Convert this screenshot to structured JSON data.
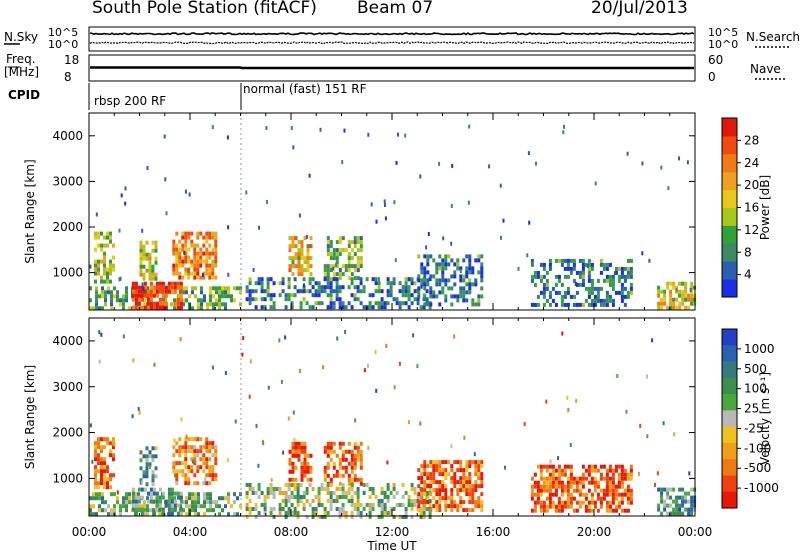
{
  "header": {
    "station": "South Pole Station (fitACF)",
    "beam": "Beam 07",
    "date": "20/Jul/2013"
  },
  "meta_panels": {
    "nsky_label": "N.Sky",
    "nsky_ticks": [
      "10^5",
      "10^0"
    ],
    "nsearch_label": "N.Search",
    "nsearch_ticks": [
      "10^5",
      "10^0"
    ],
    "freq_label_1": "Freq.",
    "freq_label_2": "[MHz]",
    "freq_ticks": [
      "18",
      "8"
    ],
    "nave_label": "Nave",
    "nave_ticks": [
      "60",
      "0"
    ],
    "cpid_label": "CPID",
    "cpid_segments": [
      {
        "label": "rbsp 200 RF",
        "start": "00:00"
      },
      {
        "label": "normal (fast) 151 RF",
        "start": "06:00"
      }
    ]
  },
  "chart_data": [
    {
      "type": "heatmap",
      "quantity": "Power",
      "ylabel": "Slant Range [km]",
      "ylim": [
        180,
        4500
      ],
      "yticks": [
        "1000",
        "2000",
        "3000",
        "4000"
      ],
      "colorbar": {
        "label": "Power [dB]",
        "ticks": [
          "4",
          "8",
          "12",
          "16",
          "20",
          "24",
          "28"
        ],
        "range": [
          0,
          32
        ],
        "colors": [
          "#1a2ee8",
          "#2a5fb0",
          "#3c8a64",
          "#2fa23a",
          "#a8c818",
          "#e8c818",
          "#f0a020",
          "#f07a18",
          "#f04a10",
          "#e01808"
        ]
      },
      "echo_regions": [
        {
          "t": [
            0.2,
            1.0
          ],
          "r": [
            800,
            1900
          ],
          "level": 0.45
        },
        {
          "t": [
            0.0,
            6.0
          ],
          "r": [
            200,
            700
          ],
          "level": 0.35
        },
        {
          "t": [
            1.7,
            3.7
          ],
          "r": [
            200,
            800
          ],
          "level": 0.9
        },
        {
          "t": [
            2.0,
            2.6
          ],
          "r": [
            900,
            1700
          ],
          "level": 0.55
        },
        {
          "t": [
            3.3,
            5.0
          ],
          "r": [
            900,
            1900
          ],
          "level": 0.7
        },
        {
          "t": [
            7.9,
            8.8
          ],
          "r": [
            1000,
            1800
          ],
          "level": 0.6
        },
        {
          "t": [
            9.3,
            10.8
          ],
          "r": [
            900,
            1800
          ],
          "level": 0.4
        },
        {
          "t": [
            6.2,
            13.5
          ],
          "r": [
            200,
            900
          ],
          "level": 0.2
        },
        {
          "t": [
            13.0,
            15.5
          ],
          "r": [
            300,
            1400
          ],
          "level": 0.2
        },
        {
          "t": [
            17.5,
            21.5
          ],
          "r": [
            300,
            1300
          ],
          "level": 0.2
        },
        {
          "t": [
            22.5,
            24.0
          ],
          "r": [
            200,
            800
          ],
          "level": 0.5
        }
      ]
    },
    {
      "type": "heatmap",
      "quantity": "Velocity",
      "ylabel": "Slant Range [km]",
      "xlabel": "Time UT",
      "ylim": [
        180,
        4500
      ],
      "yticks": [
        "1000",
        "2000",
        "3000",
        "4000"
      ],
      "xticks": [
        "00:00",
        "04:00",
        "08:00",
        "12:00",
        "16:00",
        "20:00",
        "00:00"
      ],
      "xlim": [
        0,
        24
      ],
      "colorbar": {
        "label": "Velocity [m s⁻¹]",
        "ticks": [
          "1000",
          "500",
          "100",
          "25",
          "-25",
          "-100",
          "-500",
          "-1000"
        ],
        "colors": [
          "#2040c8",
          "#2a60b0",
          "#357a80",
          "#3c8e4c",
          "#48a83a",
          "#b8b8b8",
          "#f0c020",
          "#f0a018",
          "#f07a10",
          "#f04010",
          "#e81808"
        ]
      },
      "echo_regions": [
        {
          "t": [
            0.2,
            1.0
          ],
          "r": [
            800,
            1900
          ],
          "bias": -0.6
        },
        {
          "t": [
            0.0,
            6.0
          ],
          "r": [
            200,
            700
          ],
          "bias": 0.2
        },
        {
          "t": [
            1.7,
            3.7
          ],
          "r": [
            200,
            800
          ],
          "bias": 0.4
        },
        {
          "t": [
            2.0,
            2.6
          ],
          "r": [
            900,
            1700
          ],
          "bias": 0.3
        },
        {
          "t": [
            3.3,
            5.0
          ],
          "r": [
            900,
            1900
          ],
          "bias": -0.5
        },
        {
          "t": [
            7.9,
            8.8
          ],
          "r": [
            1000,
            1800
          ],
          "bias": -0.7
        },
        {
          "t": [
            9.3,
            10.8
          ],
          "r": [
            900,
            1800
          ],
          "bias": -0.6
        },
        {
          "t": [
            6.2,
            13.5
          ],
          "r": [
            200,
            900
          ],
          "bias": 0.1
        },
        {
          "t": [
            13.0,
            15.5
          ],
          "r": [
            300,
            1400
          ],
          "bias": -0.6
        },
        {
          "t": [
            17.5,
            21.5
          ],
          "r": [
            300,
            1300
          ],
          "bias": -0.7
        },
        {
          "t": [
            22.5,
            24.0
          ],
          "r": [
            200,
            800
          ],
          "bias": 0.4
        }
      ]
    }
  ]
}
